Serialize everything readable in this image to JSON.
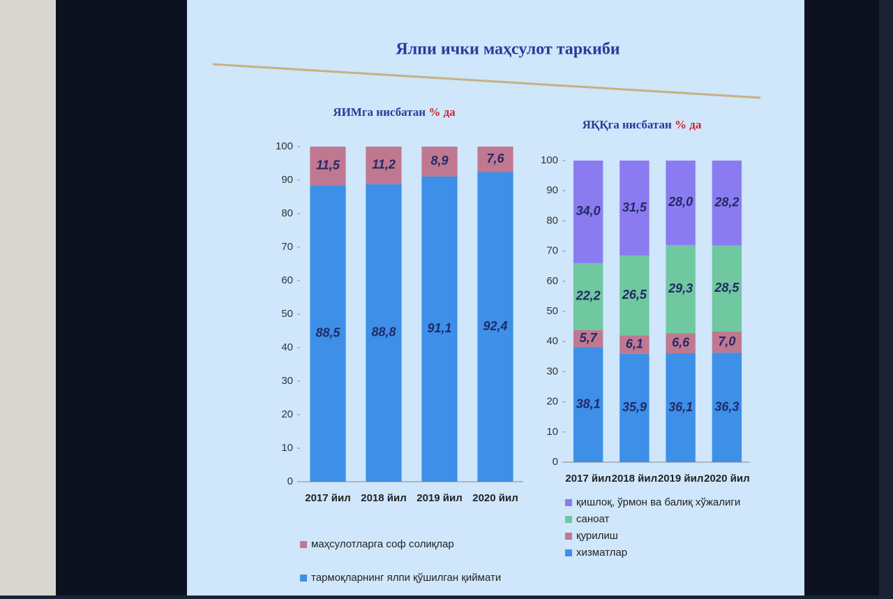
{
  "title": "Ялпи ички маҳсулот таркиби",
  "chart_data": [
    {
      "type": "stacked_bar",
      "title": "ЯИМга нисбатан",
      "title_unit": "% да",
      "categories": [
        "2017 йил",
        "2018 йил",
        "2019 йил",
        "2020 йил"
      ],
      "series": [
        {
          "name": "тармоқларнинг ялпи қўшилган қиймати",
          "color": "#3d8fe8",
          "values": [
            88.5,
            88.8,
            91.1,
            92.4
          ],
          "value_labels": [
            "88,5",
            "88,8",
            "91,1",
            "92,4"
          ]
        },
        {
          "name": "маҳсулотларга соф солиқлар",
          "color": "#c07890",
          "values": [
            11.5,
            11.2,
            8.9,
            7.6
          ],
          "value_labels": [
            "11,5",
            "11,2",
            "8,9",
            "7,6"
          ]
        }
      ],
      "ylim": [
        0,
        100
      ],
      "yticks": [
        0,
        10,
        20,
        30,
        40,
        50,
        60,
        70,
        80,
        90,
        100
      ]
    },
    {
      "type": "stacked_bar",
      "title": "ЯҚҚга нисбатан",
      "title_unit": "% да",
      "categories": [
        "2017 йил",
        "2018 йил",
        "2019 йил",
        "2020 йил"
      ],
      "series": [
        {
          "name": "хизматлар",
          "color": "#3d8fe8",
          "values": [
            38.1,
            35.9,
            36.1,
            36.3
          ],
          "value_labels": [
            "38,1",
            "35,9",
            "36,1",
            "36,3"
          ]
        },
        {
          "name": "қурилиш",
          "color": "#c07890",
          "values": [
            5.7,
            6.1,
            6.6,
            7.0
          ],
          "value_labels": [
            "5,7",
            "6,1",
            "6,6",
            "7,0"
          ]
        },
        {
          "name": "саноат",
          "color": "#6fc8a0",
          "values": [
            22.2,
            26.5,
            29.3,
            28.5
          ],
          "value_labels": [
            "22,2",
            "26,5",
            "29,3",
            "28,5"
          ]
        },
        {
          "name": "қишлоқ, ўрмон ва балиқ хўжалиги",
          "color": "#8a7cf0",
          "values": [
            34.0,
            31.5,
            28.0,
            28.2
          ],
          "value_labels": [
            "34,0",
            "31,5",
            "28,0",
            "28,2"
          ]
        }
      ],
      "ylim": [
        0,
        100
      ],
      "yticks": [
        0,
        10,
        20,
        30,
        40,
        50,
        60,
        70,
        80,
        90,
        100
      ]
    }
  ]
}
